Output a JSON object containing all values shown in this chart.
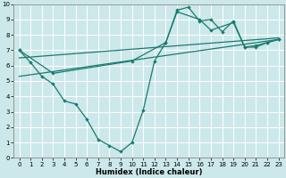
{
  "xlabel": "Humidex (Indice chaleur)",
  "bg_color": "#cce8ea",
  "grid_color": "#ffffff",
  "line_color": "#1a7a6e",
  "xlim": [
    -0.5,
    23.5
  ],
  "ylim": [
    0,
    10
  ],
  "xticks": [
    0,
    1,
    2,
    3,
    4,
    5,
    6,
    7,
    8,
    9,
    10,
    11,
    12,
    13,
    14,
    15,
    16,
    17,
    18,
    19,
    20,
    21,
    22,
    23
  ],
  "yticks": [
    0,
    1,
    2,
    3,
    4,
    5,
    6,
    7,
    8,
    9,
    10
  ],
  "line1_x": [
    0,
    1,
    2,
    3,
    4,
    5,
    6,
    7,
    8,
    9,
    10,
    11,
    12,
    13,
    14,
    15,
    16,
    17,
    18,
    19,
    20,
    21,
    22,
    23
  ],
  "line1_y": [
    7.0,
    6.2,
    5.3,
    4.8,
    3.7,
    3.5,
    2.5,
    1.2,
    0.8,
    0.4,
    1.0,
    3.1,
    6.3,
    7.5,
    9.6,
    9.8,
    8.9,
    9.0,
    8.2,
    8.9,
    7.2,
    7.3,
    7.5,
    7.7
  ],
  "line2_x": [
    0,
    3,
    10,
    13,
    14,
    16,
    17,
    19,
    20,
    21,
    22,
    23
  ],
  "line2_y": [
    7.0,
    5.5,
    6.3,
    7.5,
    9.5,
    9.0,
    8.3,
    8.8,
    7.2,
    7.2,
    7.5,
    7.7
  ],
  "line3_x": [
    0,
    23
  ],
  "line3_y": [
    5.3,
    7.7
  ],
  "line4_x": [
    0,
    23
  ],
  "line4_y": [
    6.5,
    7.8
  ]
}
